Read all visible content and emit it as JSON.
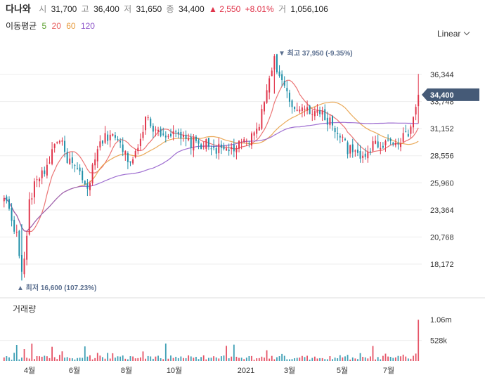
{
  "header": {
    "name": "다나와",
    "open_label": "시",
    "open_value": "31,700",
    "high_label": "고",
    "high_value": "36,400",
    "low_label": "저",
    "low_value": "31,650",
    "close_label": "종",
    "close_value": "34,400",
    "change_arrow": "▲",
    "change_value": "2,550",
    "change_pct": "+8.01%",
    "volume_label": "거",
    "volume_value": "1,056,106"
  },
  "ma_legend": {
    "label": "이동평균",
    "items": [
      {
        "period": "5",
        "color": "#5aa02c"
      },
      {
        "period": "20",
        "color": "#e85d5d"
      },
      {
        "period": "60",
        "color": "#e69a3c"
      },
      {
        "period": "120",
        "color": "#8e56c9"
      }
    ]
  },
  "scale_button": "Linear",
  "colors": {
    "up": "#e0344a",
    "down": "#1f8fa8",
    "grid": "#eeeeee",
    "price_tag_bg": "#455a77"
  },
  "annotations": {
    "max_text": "▼ 최고 37,950 (-9.35%)",
    "min_text": "▲ 최저 16,600 (107.23%)"
  },
  "volume_title": "거래량",
  "chart_data": {
    "type": "candlestick",
    "current_price": {
      "value": 34400,
      "label": "34,400"
    },
    "y_axis": {
      "ticks": [
        18172,
        20768,
        23364,
        25960,
        28556,
        31152,
        33748,
        36344
      ],
      "tick_labels": [
        "18,172",
        "20,768",
        "23,364",
        "25,960",
        "28,556",
        "31,152",
        "33,748",
        "36,344"
      ]
    },
    "x_axis": {
      "tick_labels": [
        "4월",
        "6월",
        "8월",
        "10월",
        "2021",
        "3월",
        "5월",
        "7월"
      ]
    },
    "volume_axis": {
      "tick_labels": [
        "1.06m",
        "528k"
      ],
      "ticks": [
        1060000,
        528000
      ]
    },
    "anchors": [
      {
        "t": 0.0,
        "p": 24500
      },
      {
        "t": 0.012,
        "p": 23500
      },
      {
        "t": 0.03,
        "p": 21000
      },
      {
        "t": 0.045,
        "p": 16600
      },
      {
        "t": 0.06,
        "p": 23800
      },
      {
        "t": 0.08,
        "p": 26500
      },
      {
        "t": 0.1,
        "p": 27200
      },
      {
        "t": 0.13,
        "p": 30500
      },
      {
        "t": 0.15,
        "p": 28500
      },
      {
        "t": 0.18,
        "p": 26800
      },
      {
        "t": 0.2,
        "p": 25200
      },
      {
        "t": 0.23,
        "p": 29600
      },
      {
        "t": 0.26,
        "p": 30900
      },
      {
        "t": 0.29,
        "p": 28800
      },
      {
        "t": 0.31,
        "p": 28000
      },
      {
        "t": 0.34,
        "p": 32000
      },
      {
        "t": 0.37,
        "p": 31000
      },
      {
        "t": 0.41,
        "p": 30500
      },
      {
        "t": 0.45,
        "p": 29800
      },
      {
        "t": 0.49,
        "p": 29600
      },
      {
        "t": 0.53,
        "p": 29000
      },
      {
        "t": 0.57,
        "p": 29500
      },
      {
        "t": 0.6,
        "p": 30300
      },
      {
        "t": 0.62,
        "p": 32200
      },
      {
        "t": 0.65,
        "p": 37950
      },
      {
        "t": 0.68,
        "p": 34600
      },
      {
        "t": 0.7,
        "p": 32500
      },
      {
        "t": 0.72,
        "p": 33400
      },
      {
        "t": 0.75,
        "p": 32800
      },
      {
        "t": 0.79,
        "p": 31800
      },
      {
        "t": 0.83,
        "p": 29200
      },
      {
        "t": 0.86,
        "p": 28300
      },
      {
        "t": 0.89,
        "p": 29600
      },
      {
        "t": 0.93,
        "p": 29900
      },
      {
        "t": 0.97,
        "p": 30300
      },
      {
        "t": 0.985,
        "p": 31650
      },
      {
        "t": 1.0,
        "p": 34400
      }
    ]
  }
}
